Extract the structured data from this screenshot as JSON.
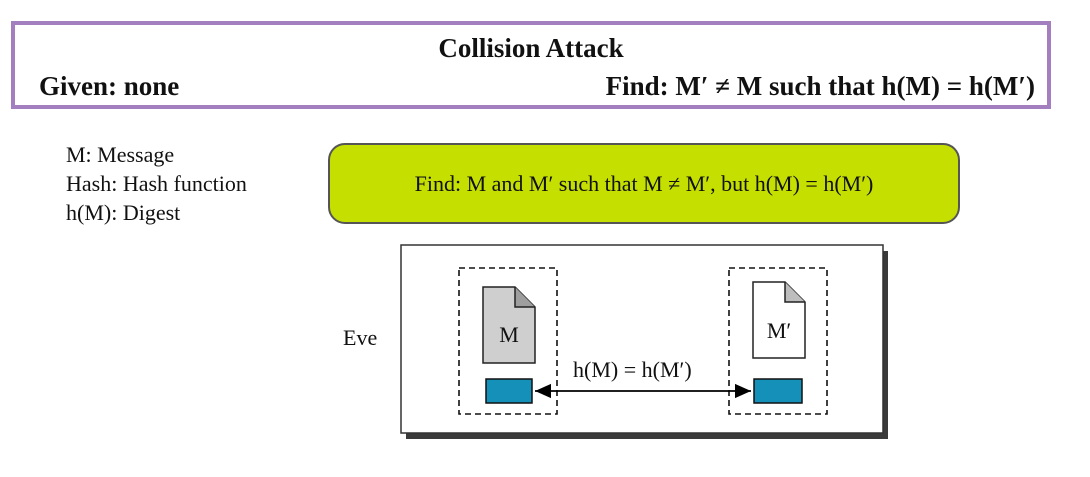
{
  "header": {
    "title": "Collision Attack",
    "given": "Given: none",
    "find": "Find: M′ ≠ M such that h(M) = h(M′)"
  },
  "legend": {
    "items": [
      "M: Message",
      "Hash: Hash function",
      "h(M): Digest"
    ]
  },
  "goal": {
    "text": "Find: M and M′ such that M ≠ M′, but h(M) = h(M′)"
  },
  "diagram": {
    "actor": "Eve",
    "doc_left": "M",
    "doc_right": "M′",
    "equality": "h(M) = h(M′)"
  },
  "colors": {
    "header_border": "#a47fbf",
    "goal_fill": "#c5e000",
    "digest_fill": "#1590b8",
    "doc_left_fill": "#cfcfcf"
  }
}
